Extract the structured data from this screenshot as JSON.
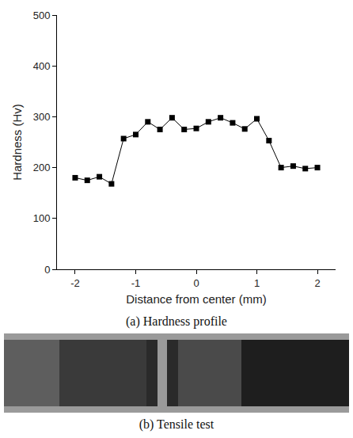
{
  "chart_data": {
    "type": "line",
    "x": [
      -2.0,
      -1.8,
      -1.6,
      -1.4,
      -1.2,
      -1.0,
      -0.8,
      -0.6,
      -0.4,
      -0.2,
      0.0,
      0.2,
      0.4,
      0.6,
      0.8,
      1.0,
      1.2,
      1.4,
      1.6,
      1.8,
      2.0
    ],
    "values": [
      180,
      175,
      182,
      168,
      257,
      265,
      290,
      275,
      298,
      275,
      277,
      290,
      298,
      288,
      276,
      296,
      253,
      200,
      203,
      198,
      200
    ],
    "color": "#000000",
    "marker": "square",
    "line_style": "solid",
    "x_label": "Distance from center (mm)",
    "y_label": "Hardness (Hv)",
    "xlim": [
      -2.3,
      2.3
    ],
    "xticks": [
      -2,
      -1,
      0,
      1,
      2
    ],
    "ylim": [
      0,
      500
    ],
    "yticks": [
      0,
      100,
      200,
      300,
      400,
      500
    ],
    "grid": false,
    "caption": "(a) Hardness profile"
  },
  "photo": {
    "caption": "(b) Tensile test"
  }
}
